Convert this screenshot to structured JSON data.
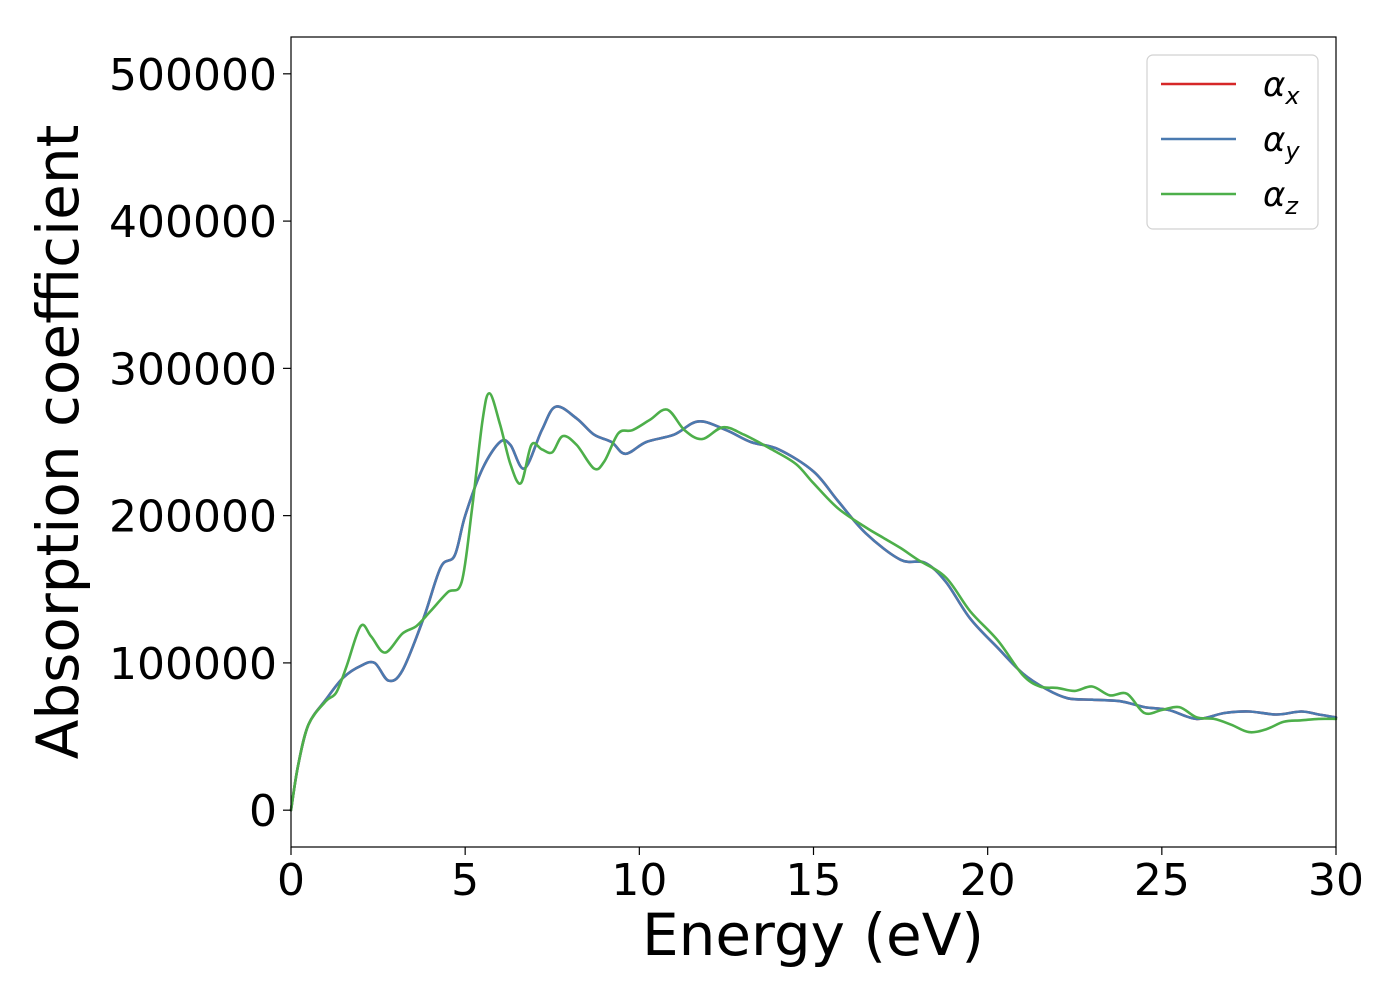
{
  "chart_data": {
    "type": "line",
    "xlabel": "Energy (eV)",
    "ylabel": "Absorption coefficient",
    "xlim": [
      0,
      30
    ],
    "ylim": [
      -25000,
      525000
    ],
    "xticks": [
      0,
      5,
      10,
      15,
      20,
      25,
      30
    ],
    "yticks": [
      0,
      100000,
      200000,
      300000,
      400000,
      500000
    ],
    "grid": false,
    "legend_position": "top-right",
    "series": [
      {
        "name": "αx",
        "symbol": "α",
        "subscript": "x",
        "color": "#d62728",
        "x": [
          0,
          0.2,
          0.5,
          1,
          1.5,
          2,
          2.4,
          2.8,
          3.2,
          3.8,
          4.3,
          4.7,
          5,
          5.5,
          6,
          6.3,
          6.7,
          7.2,
          7.6,
          8.2,
          8.7,
          9.2,
          9.6,
          10.2,
          11,
          11.7,
          12.5,
          13.2,
          14,
          15,
          15.7,
          16.5,
          17.5,
          18.2,
          18.8,
          19.5,
          20.3,
          21,
          21.7,
          22.3,
          23,
          23.8,
          24.5,
          25.2,
          26,
          26.8,
          27.5,
          28.3,
          29,
          29.5,
          30
        ],
        "y": [
          0,
          30000,
          58000,
          75000,
          90000,
          98000,
          100000,
          88000,
          95000,
          130000,
          165000,
          173000,
          200000,
          232000,
          250000,
          248000,
          232000,
          258000,
          274000,
          266000,
          255000,
          250000,
          242000,
          250000,
          255000,
          264000,
          258000,
          250000,
          245000,
          230000,
          210000,
          188000,
          170000,
          168000,
          155000,
          130000,
          110000,
          93000,
          82000,
          76000,
          75000,
          74000,
          70000,
          68000,
          62000,
          66000,
          67000,
          65000,
          67000,
          65000,
          63000
        ]
      },
      {
        "name": "αy",
        "symbol": "α",
        "subscript": "y",
        "color": "#4a7ab0",
        "x": [
          0,
          0.2,
          0.5,
          1,
          1.5,
          2,
          2.4,
          2.8,
          3.2,
          3.8,
          4.3,
          4.7,
          5,
          5.5,
          6,
          6.3,
          6.7,
          7.2,
          7.6,
          8.2,
          8.7,
          9.2,
          9.6,
          10.2,
          11,
          11.7,
          12.5,
          13.2,
          14,
          15,
          15.7,
          16.5,
          17.5,
          18.2,
          18.8,
          19.5,
          20.3,
          21,
          21.7,
          22.3,
          23,
          23.8,
          24.5,
          25.2,
          26,
          26.8,
          27.5,
          28.3,
          29,
          29.5,
          30
        ],
        "y": [
          0,
          30000,
          58000,
          75000,
          90000,
          98000,
          100000,
          88000,
          95000,
          130000,
          165000,
          173000,
          200000,
          232000,
          250000,
          248000,
          232000,
          258000,
          274000,
          266000,
          255000,
          250000,
          242000,
          250000,
          255000,
          264000,
          258000,
          250000,
          245000,
          230000,
          210000,
          188000,
          170000,
          168000,
          155000,
          130000,
          110000,
          93000,
          82000,
          76000,
          75000,
          74000,
          70000,
          68000,
          62000,
          66000,
          67000,
          65000,
          67000,
          65000,
          63000
        ]
      },
      {
        "name": "αz",
        "symbol": "α",
        "subscript": "z",
        "color": "#4daf4a",
        "x": [
          0,
          0.2,
          0.5,
          1,
          1.3,
          1.6,
          2,
          2.3,
          2.7,
          3.2,
          3.6,
          4,
          4.5,
          4.9,
          5.2,
          5.5,
          5.7,
          6,
          6.3,
          6.6,
          6.9,
          7.2,
          7.5,
          7.8,
          8.2,
          8.7,
          9,
          9.4,
          9.8,
          10.3,
          10.8,
          11.3,
          11.8,
          12.4,
          13,
          13.8,
          14.5,
          15,
          15.7,
          16.5,
          17,
          17.5,
          18,
          18.8,
          19.5,
          20.3,
          21,
          21.5,
          22,
          22.5,
          23,
          23.5,
          24,
          24.5,
          25,
          25.5,
          26,
          26.5,
          27,
          27.5,
          28,
          28.5,
          29,
          29.5,
          30
        ],
        "y": [
          0,
          30000,
          58000,
          74000,
          80000,
          98000,
          125000,
          118000,
          107000,
          120000,
          125000,
          135000,
          148000,
          155000,
          205000,
          265000,
          283000,
          262000,
          235000,
          222000,
          248000,
          245000,
          243000,
          254000,
          248000,
          232000,
          237000,
          256000,
          258000,
          265000,
          272000,
          258000,
          252000,
          260000,
          255000,
          245000,
          235000,
          222000,
          205000,
          192000,
          185000,
          178000,
          170000,
          158000,
          135000,
          115000,
          92000,
          84000,
          83000,
          81000,
          84000,
          78000,
          79000,
          66000,
          68000,
          70000,
          63000,
          62000,
          58000,
          53000,
          55000,
          60000,
          61000,
          62000,
          62000
        ]
      }
    ]
  }
}
